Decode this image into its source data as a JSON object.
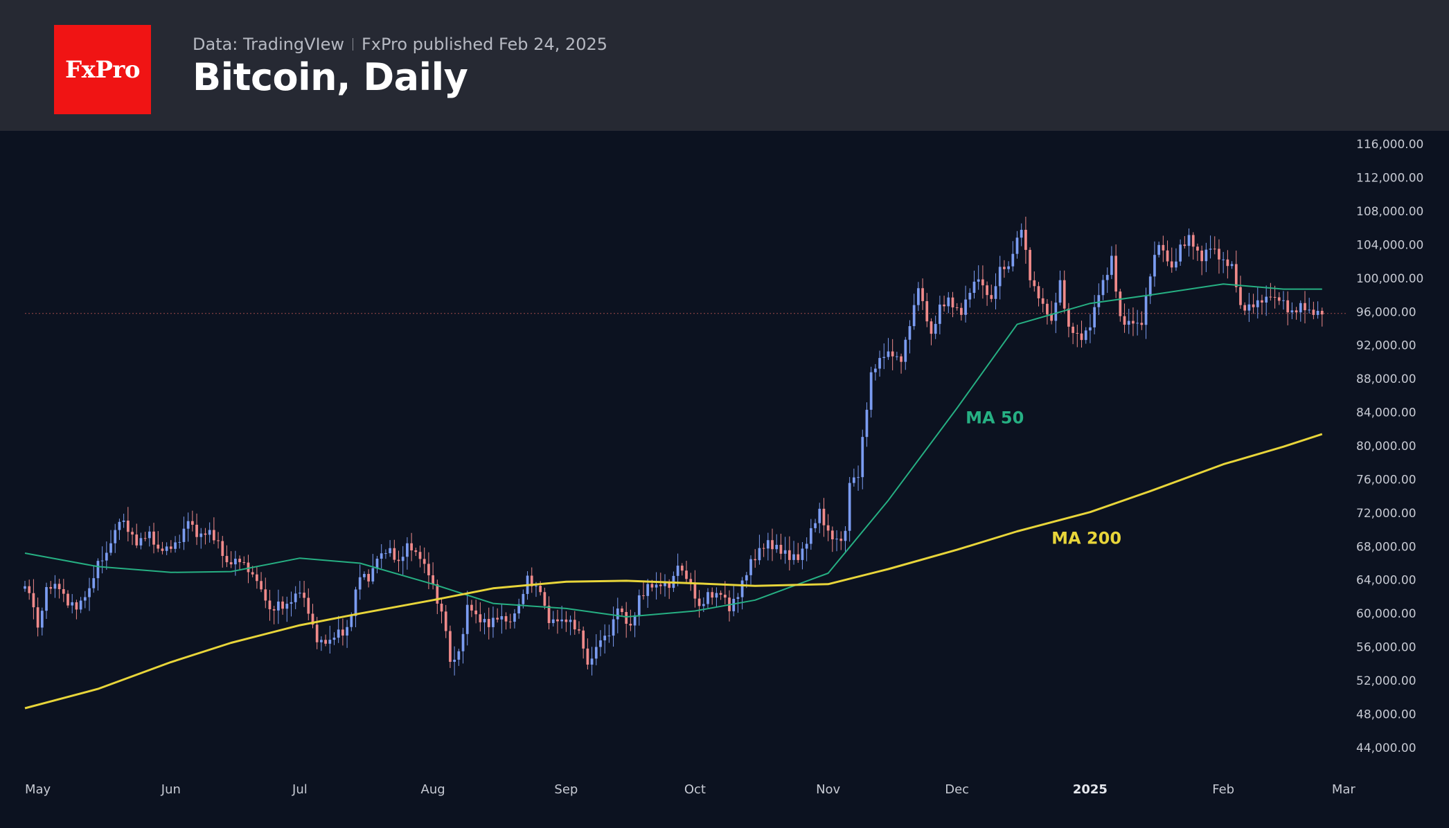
{
  "header": {
    "logo_text": "FxPro",
    "source": "Data: TradingVIew",
    "published": "FxPro published Feb 24, 2025",
    "title": "Bitcoin, Daily"
  },
  "colors": {
    "background": "#0c1220",
    "header_bg": "#262933",
    "logo_bg": "#f01414",
    "candle_up": "#7b9cf1",
    "candle_down": "#f08a8a",
    "ma50": "#26b083",
    "ma200": "#e8d53a",
    "price_line": "#a04a4a"
  },
  "chart_data": {
    "type": "candlestick",
    "title": "Bitcoin, Daily",
    "xlabel": "",
    "ylabel": "",
    "ylim": [
      43000,
      117000
    ],
    "y_ticks": [
      "116,000.00",
      "112,000.00",
      "108,000.00",
      "104,000.00",
      "100,000.00",
      "96,000.00",
      "92,000.00",
      "88,000.00",
      "84,000.00",
      "80,000.00",
      "76,000.00",
      "72,000.00",
      "68,000.00",
      "64,000.00",
      "60,000.00",
      "56,000.00",
      "52,000.00",
      "48,000.00",
      "44,000.00"
    ],
    "x_ticks": [
      {
        "label": "May",
        "date": "2024-05-01"
      },
      {
        "label": "Jun",
        "date": "2024-06-01"
      },
      {
        "label": "Jul",
        "date": "2024-07-01"
      },
      {
        "label": "Aug",
        "date": "2024-08-01"
      },
      {
        "label": "Sep",
        "date": "2024-09-01"
      },
      {
        "label": "Oct",
        "date": "2024-10-01"
      },
      {
        "label": "Nov",
        "date": "2024-11-01"
      },
      {
        "label": "Dec",
        "date": "2024-12-01"
      },
      {
        "label": "2025",
        "date": "2025-01-01",
        "bold": true
      },
      {
        "label": "Feb",
        "date": "2025-02-01"
      },
      {
        "label": "Mar",
        "date": "2025-03-01"
      }
    ],
    "x_range": [
      "2024-04-28",
      "2025-03-02"
    ],
    "grid": false,
    "current_price": 95800,
    "series": [
      {
        "name": "MA 50",
        "color": "#26b083",
        "points": [
          [
            "2024-04-28",
            67200
          ],
          [
            "2024-05-15",
            65600
          ],
          [
            "2024-06-01",
            64900
          ],
          [
            "2024-06-15",
            65000
          ],
          [
            "2024-07-01",
            66600
          ],
          [
            "2024-07-15",
            66000
          ],
          [
            "2024-08-01",
            63500
          ],
          [
            "2024-08-15",
            61200
          ],
          [
            "2024-09-01",
            60600
          ],
          [
            "2024-09-15",
            59600
          ],
          [
            "2024-10-01",
            60300
          ],
          [
            "2024-10-15",
            61600
          ],
          [
            "2024-11-01",
            64800
          ],
          [
            "2024-11-15",
            73500
          ],
          [
            "2024-12-01",
            84500
          ],
          [
            "2024-12-15",
            94500
          ],
          [
            "2025-01-01",
            97000
          ],
          [
            "2025-01-15",
            98000
          ],
          [
            "2025-02-01",
            99300
          ],
          [
            "2025-02-15",
            98700
          ],
          [
            "2025-02-24",
            98700
          ]
        ]
      },
      {
        "name": "MA 200",
        "color": "#e8d53a",
        "points": [
          [
            "2024-04-28",
            48700
          ],
          [
            "2024-05-15",
            51000
          ],
          [
            "2024-06-01",
            54200
          ],
          [
            "2024-06-15",
            56500
          ],
          [
            "2024-07-01",
            58600
          ],
          [
            "2024-07-15",
            60000
          ],
          [
            "2024-08-01",
            61600
          ],
          [
            "2024-08-15",
            63000
          ],
          [
            "2024-09-01",
            63800
          ],
          [
            "2024-09-15",
            63900
          ],
          [
            "2024-10-01",
            63600
          ],
          [
            "2024-10-15",
            63300
          ],
          [
            "2024-11-01",
            63500
          ],
          [
            "2024-11-15",
            65300
          ],
          [
            "2024-12-01",
            67600
          ],
          [
            "2024-12-15",
            69800
          ],
          [
            "2025-01-01",
            72100
          ],
          [
            "2025-01-15",
            74600
          ],
          [
            "2025-02-01",
            77800
          ],
          [
            "2025-02-15",
            79900
          ],
          [
            "2025-02-24",
            81400
          ]
        ]
      }
    ],
    "annotations": [
      {
        "text": "MA 50",
        "date": "2024-12-03",
        "price": 82700,
        "color": "#26b083"
      },
      {
        "text": "MA 200",
        "date": "2024-12-23",
        "price": 68300,
        "color": "#e8d53a"
      }
    ],
    "closes": [
      [
        "2024-04-28",
        63500
      ],
      [
        "2024-04-30",
        60800
      ],
      [
        "2024-05-01",
        58200
      ],
      [
        "2024-05-03",
        62900
      ],
      [
        "2024-05-06",
        63200
      ],
      [
        "2024-05-08",
        61100
      ],
      [
        "2024-05-10",
        60800
      ],
      [
        "2024-05-13",
        62900
      ],
      [
        "2024-05-15",
        66200
      ],
      [
        "2024-05-17",
        67000
      ],
      [
        "2024-05-20",
        71400
      ],
      [
        "2024-05-22",
        69800
      ],
      [
        "2024-05-24",
        68600
      ],
      [
        "2024-05-27",
        69500
      ],
      [
        "2024-05-29",
        67600
      ],
      [
        "2024-05-31",
        67500
      ],
      [
        "2024-06-03",
        68800
      ],
      [
        "2024-06-05",
        71100
      ],
      [
        "2024-06-07",
        69300
      ],
      [
        "2024-06-10",
        69500
      ],
      [
        "2024-06-12",
        68200
      ],
      [
        "2024-06-14",
        66000
      ],
      [
        "2024-06-17",
        66500
      ],
      [
        "2024-06-19",
        65000
      ],
      [
        "2024-06-21",
        64100
      ],
      [
        "2024-06-24",
        60300
      ],
      [
        "2024-06-26",
        61100
      ],
      [
        "2024-06-28",
        61000
      ],
      [
        "2024-07-01",
        62700
      ],
      [
        "2024-07-03",
        60200
      ],
      [
        "2024-07-05",
        56700
      ],
      [
        "2024-07-08",
        56800
      ],
      [
        "2024-07-10",
        57700
      ],
      [
        "2024-07-12",
        57900
      ],
      [
        "2024-07-15",
        64700
      ],
      [
        "2024-07-17",
        64100
      ],
      [
        "2024-07-19",
        66700
      ],
      [
        "2024-07-22",
        67600
      ],
      [
        "2024-07-24",
        65900
      ],
      [
        "2024-07-26",
        67900
      ],
      [
        "2024-07-29",
        66800
      ],
      [
        "2024-07-31",
        64600
      ],
      [
        "2024-08-02",
        61400
      ],
      [
        "2024-08-04",
        58200
      ],
      [
        "2024-08-05",
        54000
      ],
      [
        "2024-08-07",
        55100
      ],
      [
        "2024-08-09",
        60900
      ],
      [
        "2024-08-12",
        59300
      ],
      [
        "2024-08-14",
        58700
      ],
      [
        "2024-08-16",
        59400
      ],
      [
        "2024-08-19",
        59000
      ],
      [
        "2024-08-21",
        61100
      ],
      [
        "2024-08-23",
        64100
      ],
      [
        "2024-08-26",
        62800
      ],
      [
        "2024-08-28",
        59000
      ],
      [
        "2024-08-30",
        59100
      ],
      [
        "2024-09-02",
        59100
      ],
      [
        "2024-09-04",
        57900
      ],
      [
        "2024-09-06",
        53900
      ],
      [
        "2024-09-09",
        57000
      ],
      [
        "2024-09-11",
        57600
      ],
      [
        "2024-09-13",
        60600
      ],
      [
        "2024-09-16",
        58200
      ],
      [
        "2024-09-18",
        61700
      ],
      [
        "2024-09-20",
        63200
      ],
      [
        "2024-09-23",
        63300
      ],
      [
        "2024-09-25",
        63100
      ],
      [
        "2024-09-27",
        65800
      ],
      [
        "2024-09-30",
        63300
      ],
      [
        "2024-10-02",
        60700
      ],
      [
        "2024-10-04",
        62100
      ],
      [
        "2024-10-07",
        62300
      ],
      [
        "2024-10-09",
        60600
      ],
      [
        "2024-10-11",
        62400
      ],
      [
        "2024-10-14",
        66000
      ],
      [
        "2024-10-16",
        67600
      ],
      [
        "2024-10-18",
        68400
      ],
      [
        "2024-10-21",
        67400
      ],
      [
        "2024-10-23",
        66700
      ],
      [
        "2024-10-25",
        66600
      ],
      [
        "2024-10-28",
        69900
      ],
      [
        "2024-10-30",
        72300
      ],
      [
        "2024-11-01",
        69500
      ],
      [
        "2024-11-03",
        68700
      ],
      [
        "2024-11-05",
        69500
      ],
      [
        "2024-11-06",
        75600
      ],
      [
        "2024-11-08",
        76500
      ],
      [
        "2024-11-11",
        88700
      ],
      [
        "2024-11-13",
        90400
      ],
      [
        "2024-11-15",
        91000
      ],
      [
        "2024-11-18",
        90500
      ],
      [
        "2024-11-20",
        94300
      ],
      [
        "2024-11-22",
        98900
      ],
      [
        "2024-11-25",
        93000
      ],
      [
        "2024-11-27",
        96400
      ],
      [
        "2024-11-29",
        97500
      ],
      [
        "2024-12-02",
        95800
      ],
      [
        "2024-12-04",
        98700
      ],
      [
        "2024-12-06",
        99900
      ],
      [
        "2024-12-09",
        97400
      ],
      [
        "2024-12-11",
        101100
      ],
      [
        "2024-12-13",
        101400
      ],
      [
        "2024-12-16",
        106000
      ],
      [
        "2024-12-18",
        100200
      ],
      [
        "2024-12-20",
        97800
      ],
      [
        "2024-12-23",
        94900
      ],
      [
        "2024-12-25",
        99400
      ],
      [
        "2024-12-27",
        94200
      ],
      [
        "2024-12-30",
        92800
      ],
      [
        "2025-01-01",
        94500
      ],
      [
        "2025-01-03",
        98100
      ],
      [
        "2025-01-06",
        102200
      ],
      [
        "2025-01-08",
        95000
      ],
      [
        "2025-01-10",
        94700
      ],
      [
        "2025-01-13",
        94500
      ],
      [
        "2025-01-15",
        100500
      ],
      [
        "2025-01-17",
        104100
      ],
      [
        "2025-01-20",
        101200
      ],
      [
        "2025-01-22",
        103700
      ],
      [
        "2025-01-24",
        104800
      ],
      [
        "2025-01-27",
        102100
      ],
      [
        "2025-01-29",
        104000
      ],
      [
        "2025-01-31",
        102400
      ],
      [
        "2025-02-03",
        101400
      ],
      [
        "2025-02-05",
        96600
      ],
      [
        "2025-02-07",
        96500
      ],
      [
        "2025-02-10",
        97400
      ],
      [
        "2025-02-12",
        97800
      ],
      [
        "2025-02-14",
        97500
      ],
      [
        "2025-02-17",
        95700
      ],
      [
        "2025-02-19",
        96600
      ],
      [
        "2025-02-21",
        96200
      ],
      [
        "2025-02-24",
        95800
      ]
    ]
  }
}
